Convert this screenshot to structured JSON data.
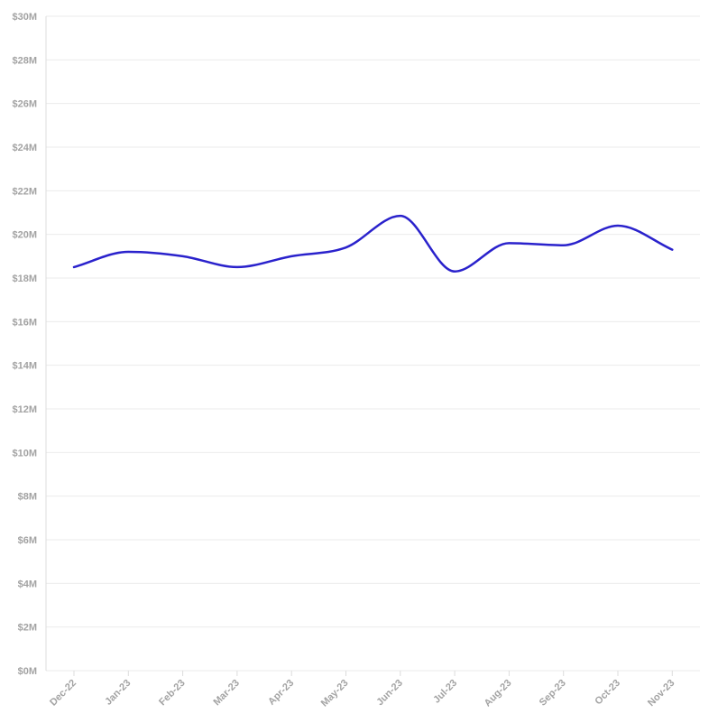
{
  "chart_data": {
    "type": "line",
    "title": "",
    "xlabel": "",
    "ylabel": "",
    "categories": [
      "Dec-22",
      "Jan-23",
      "Feb-23",
      "Mar-23",
      "Apr-23",
      "May-23",
      "Jun-23",
      "Jul-23",
      "Aug-23",
      "Sep-23",
      "Oct-23",
      "Nov-23"
    ],
    "series": [
      {
        "values": [
          18.5,
          19.2,
          19.0,
          18.5,
          19.0,
          19.4,
          20.85,
          18.3,
          19.6,
          19.5,
          20.4,
          19.3
        ],
        "color": "#2a22cc"
      }
    ],
    "ylim": [
      0,
      30
    ],
    "yticks": [
      0,
      2,
      4,
      6,
      8,
      10,
      12,
      14,
      16,
      18,
      20,
      22,
      24,
      26,
      28,
      30
    ],
    "ytick_labels": [
      "$0M",
      "$2M",
      "$4M",
      "$6M",
      "$8M",
      "$10M",
      "$12M",
      "$14M",
      "$16M",
      "$18M",
      "$20M",
      "$22M",
      "$24M",
      "$26M",
      "$28M",
      "$30M"
    ],
    "grid": true,
    "legend": "none",
    "colors": {
      "line": "#2a22cc",
      "grid": "#ebebeb",
      "axis": "#dcdcdc",
      "tick_text": "#a3a3a3"
    }
  }
}
